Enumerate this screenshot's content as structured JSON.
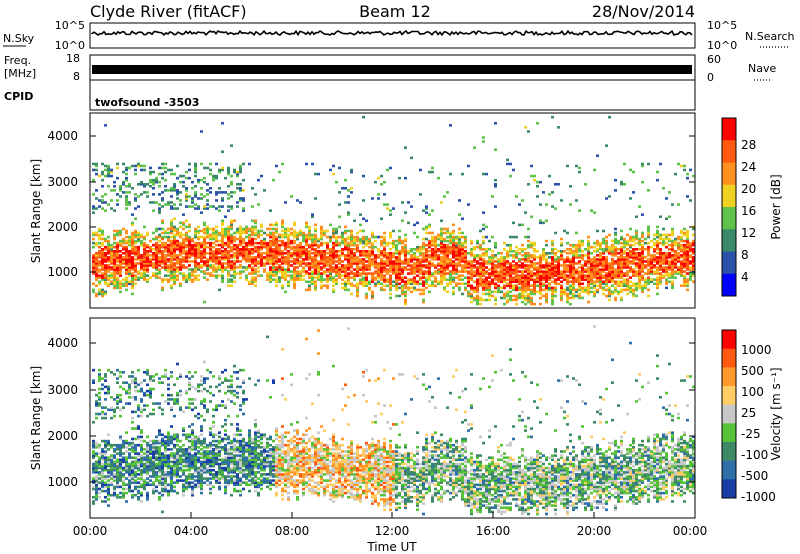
{
  "header": {
    "station": "Clyde River (fitACF)",
    "beam": "Beam 12",
    "date": "28/Nov/2014"
  },
  "noise_panel": {
    "left_label": "N.Sky",
    "left_ticks": [
      "10^5",
      "10^0"
    ],
    "right_label": "N.Search",
    "right_ticks": [
      "10^5",
      "10^0"
    ]
  },
  "freq_panel": {
    "left_label_line1": "Freq.",
    "left_label_line2": "[MHz]",
    "left_ticks": [
      "18",
      "8"
    ],
    "right_label": "Nave",
    "right_ticks": [
      "60",
      "0"
    ]
  },
  "cpid_panel": {
    "label": "CPID",
    "value": "twofsound -3503"
  },
  "colors": {
    "power_scale": [
      "#0000ff",
      "#2a52a8",
      "#3a8a6a",
      "#5fc24a",
      "#f0d020",
      "#ff9020",
      "#ff5a10",
      "#ff0000"
    ],
    "velocity_scale": [
      "#1a3ea8",
      "#2e6fa8",
      "#3f8a66",
      "#55c23a",
      "#c8c8c8",
      "#ffcc66",
      "#ff9a2a",
      "#ff5a10",
      "#ff0000"
    ]
  },
  "chart_data": [
    {
      "type": "heatmap",
      "panel": "power",
      "ylabel": "Slant Range [km]",
      "xlim": [
        "00:00",
        "24:00"
      ],
      "ylim": [
        180,
        4500
      ],
      "yticks": [
        "1000",
        "2000",
        "3000",
        "4000"
      ],
      "colorbar": {
        "label": "Power [dB]",
        "range": [
          0,
          32
        ],
        "ticks": [
          "4",
          "8",
          "12",
          "16",
          "20",
          "24",
          "28"
        ]
      }
    },
    {
      "type": "heatmap",
      "panel": "velocity",
      "ylabel": "Slant Range [km]",
      "xlabel": "Time UT",
      "xlim": [
        "00:00",
        "24:00"
      ],
      "ylim": [
        180,
        4500
      ],
      "xticks": [
        "00:00",
        "04:00",
        "08:00",
        "12:00",
        "16:00",
        "20:00",
        "00:00"
      ],
      "yticks": [
        "1000",
        "2000",
        "3000",
        "4000"
      ],
      "colorbar": {
        "label": "Velocity [m s⁻¹]",
        "ticks": [
          "1000",
          "500",
          "100",
          "25",
          "-25",
          "-100",
          "-500",
          "-1000"
        ]
      }
    }
  ]
}
